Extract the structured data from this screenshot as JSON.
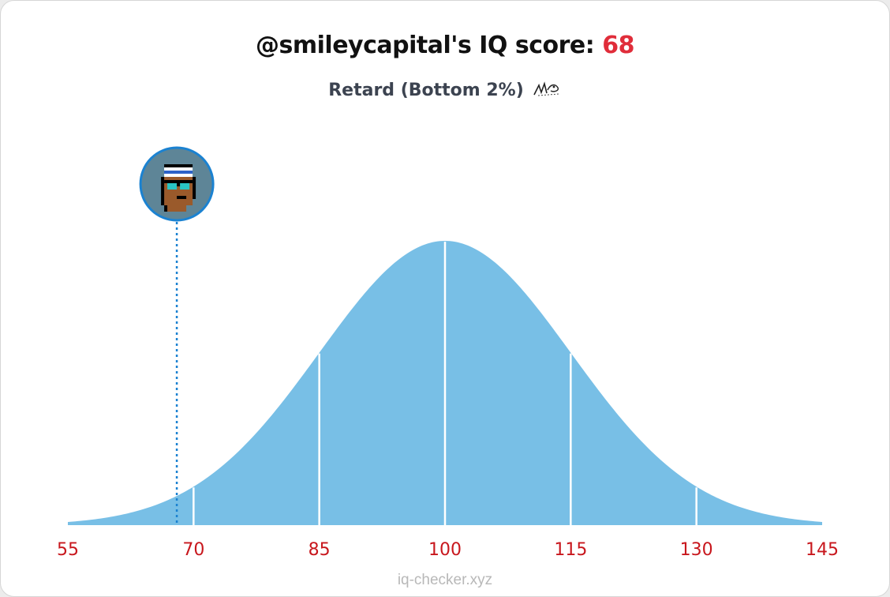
{
  "header": {
    "title_prefix": "@smileycapital's IQ score: ",
    "score": "68",
    "subtitle": "Retard (Bottom 2%)"
  },
  "footer": {
    "site": "iq-checker.xyz"
  },
  "colors": {
    "curve_fill": "#78bfe6",
    "marker_line": "#1b82d1",
    "tick_text": "#c8171d",
    "score_text": "#e02d3a"
  },
  "chart_data": {
    "type": "area",
    "title": "@smileycapital's IQ score: 68",
    "subtitle": "Retard (Bottom 2%)",
    "xlabel": "",
    "ylabel": "",
    "distribution": "normal",
    "mean": 100,
    "sd": 15,
    "xlim": [
      55,
      145
    ],
    "x_ticks": [
      55,
      70,
      85,
      100,
      115,
      130,
      145
    ],
    "x_tick_labels": [
      "55",
      "70",
      "85",
      "100",
      "115",
      "130",
      "145"
    ],
    "divider_lines": [
      70,
      85,
      100,
      115,
      130
    ],
    "marker": {
      "value": 68,
      "style": "dotted",
      "icon": "pixel-avatar-icon"
    },
    "grid": false,
    "legend": "none"
  }
}
